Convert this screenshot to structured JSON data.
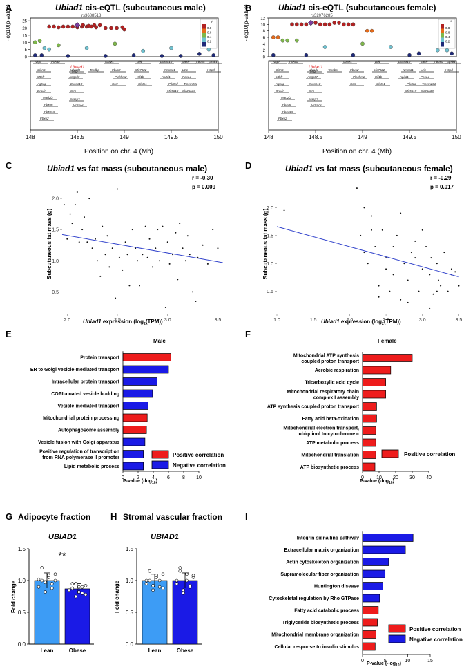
{
  "figure": {
    "panels": {
      "A": {
        "letter": "A",
        "gene": "Ubiad1",
        "title_rest": " cis-eQTL (subcutaneous male)",
        "snp": "rs3688518",
        "ylabel": "-log10(p-value)",
        "yticks": [
          "0",
          "5",
          "10",
          "15",
          "20",
          "25"
        ],
        "xlabel": "Position on chr. 4 (Mb)",
        "xticks": [
          "148",
          "148.5",
          "149",
          "149.5",
          "150"
        ],
        "highlight_gene": "Ubiad1"
      },
      "B": {
        "letter": "B",
        "gene": "Ubiad1",
        "title_rest": " cis-eQTL (subcutaneous female)",
        "snp": "rs32076285",
        "ylabel": "-log10(p-value)",
        "yticks": [
          "0",
          "2",
          "4",
          "6",
          "8",
          "10",
          "12"
        ],
        "xlabel": "Position on chr. 4 (Mb)",
        "xticks": [
          "148",
          "148.5",
          "149",
          "149.5",
          "150"
        ],
        "highlight_gene": "Ubiad1"
      },
      "C": {
        "letter": "C",
        "gene": "Ubiad1",
        "title_rest": " vs fat mass (subcutaneous male)",
        "r": "r = -0.30",
        "p": "p = 0.009",
        "ylabel": "Subcutaneous fat mass (g)",
        "xlabel_gene": "Ubiad1",
        "xlabel_rest": " expression (log",
        "xlabel_sub": "2",
        "xlabel_end": "(TPM))"
      },
      "D": {
        "letter": "D",
        "gene": "Ubiad1",
        "title_rest": " vs fat mass (subcutaneous female)",
        "r": "r = -0.29",
        "p": "p = 0.017",
        "ylabel": "Subcutaneous fat mass (g)",
        "xlabel_gene": "Ubiad1",
        "xlabel_rest": " expression (log",
        "xlabel_sub": "2",
        "xlabel_end": "(TPM))"
      },
      "E": {
        "letter": "E",
        "title": "Male",
        "legend_pos": "Positive correlation",
        "legend_neg": "Negative correlation",
        "xlabel": "P-value (-log",
        "xlabel_sub": "10",
        "xlabel_end": ")"
      },
      "F": {
        "letter": "F",
        "title": "Female",
        "legend_pos": "Positive correlation",
        "xlabel": "P-value (-log",
        "xlabel_sub": "10",
        "xlabel_end": ")"
      },
      "G": {
        "letter": "G",
        "title": "Adipocyte fraction",
        "gene": "UBIAD1",
        "ylabel": "Fold change",
        "signif": "**"
      },
      "H": {
        "letter": "H",
        "title": "Stromal vascular fraction",
        "gene": "UBIAD1",
        "ylabel": "Fold change"
      },
      "I": {
        "letter": "I",
        "legend_pos": "Positive correlation",
        "legend_neg": "Negative correlation",
        "xlabel": "P-value (-log",
        "xlabel_sub": "10",
        "xlabel_end": ")"
      }
    },
    "r2_legend": {
      "title": "r²",
      "ticks": [
        "0.8",
        "0.6",
        "0.4",
        "0.2"
      ]
    },
    "gene_track_labels": [
      "Nbpf",
      "Pkhd2",
      "Mtor",
      "Casz1",
      "Dffb",
      "Ubiad1",
      "Tardbp",
      "Angptl7",
      "Exosc10",
      "Srm",
      "Masp2",
      "Gm572",
      "Clcn6",
      "Mthfr",
      "Agtrap",
      "Draxin",
      "Mad2l2",
      "Fbxo6",
      "Fbxo44",
      "Fbxo2",
      "Mir7022",
      "Plekhm2",
      "Kif1b",
      "Cort",
      "Apitd1",
      "Ubed4b",
      "Nmnat1",
      "Rbp7",
      "Lzic",
      "Pex14",
      "Pgd",
      "Clstn1",
      "Ctnnbip1",
      "Pik3cd",
      "Tmem201",
      "Mir5615",
      "Slc25a33",
      "Spsb1",
      "H6pd"
    ]
  },
  "chart_data": [
    {
      "panel": "A",
      "type": "scatter",
      "title": "Ubiad1 cis-eQTL (subcutaneous male)",
      "xlabel": "Position on chr. 4 (Mb)",
      "ylabel": "-log10(p-value)",
      "xlim": [
        148,
        150
      ],
      "ylim": [
        0,
        27
      ],
      "x": [
        148.2,
        148.25,
        148.3,
        148.35,
        148.4,
        148.45,
        148.5,
        148.55,
        148.6,
        148.65,
        148.7,
        148.5,
        148.56,
        148.62,
        148.68,
        148.74,
        148.8,
        148.86,
        148.92,
        148.98,
        149.0,
        148.05,
        148.1,
        148.15,
        148.2,
        148.3,
        148.6,
        148.9,
        149.2,
        149.5,
        149.8,
        149.9,
        148.05,
        148.12,
        148.4,
        148.8,
        149.1,
        149.4,
        149.6,
        149.95
      ],
      "y": [
        21,
        21,
        20.5,
        21,
        21,
        21,
        20.5,
        21,
        21,
        21,
        20.5,
        22,
        22,
        21.5,
        22,
        22,
        20,
        20,
        20,
        20.5,
        19,
        10,
        11,
        6,
        5,
        8,
        6,
        9,
        4,
        6,
        2,
        5,
        1,
        1,
        0.5,
        0.5,
        1,
        0.5,
        0.5,
        1
      ]
    },
    {
      "panel": "B",
      "type": "scatter",
      "title": "Ubiad1 cis-eQTL (subcutaneous female)",
      "xlabel": "Position on chr. 4 (Mb)",
      "ylabel": "-log10(p-value)",
      "xlim": [
        148,
        150
      ],
      "ylim": [
        0,
        12
      ],
      "x": [
        148.25,
        148.3,
        148.35,
        148.4,
        148.45,
        148.5,
        148.55,
        148.6,
        148.65,
        148.7,
        148.75,
        148.8,
        148.85,
        148.9,
        149.05,
        149.1,
        148.05,
        148.1,
        148.15,
        148.2,
        148.3,
        148.6,
        149.0,
        149.3,
        149.6,
        149.8,
        149.9,
        148.05,
        148.4,
        148.9,
        149.5,
        149.95
      ],
      "y": [
        10,
        10,
        10,
        10,
        10.5,
        10.5,
        10,
        10,
        10,
        10.5,
        10.5,
        10,
        10,
        10,
        8,
        8,
        6,
        6,
        5,
        5,
        5,
        3,
        4,
        3,
        1,
        2,
        2,
        0.5,
        0.5,
        0.5,
        0.5,
        1
      ]
    },
    {
      "panel": "C",
      "type": "scatter",
      "title": "Ubiad1 vs fat mass (subcutaneous male)",
      "xlabel": "Ubiad1 expression (log2(TPM))",
      "ylabel": "Subcutaneous fat mass (g)",
      "xlim": [
        1.95,
        3.6
      ],
      "ylim": [
        0.15,
        2.3
      ],
      "x": [
        1.97,
        2.0,
        2.03,
        2.05,
        2.08,
        2.1,
        2.12,
        2.15,
        2.17,
        2.2,
        2.22,
        2.25,
        2.28,
        2.3,
        2.33,
        2.35,
        2.38,
        2.4,
        2.42,
        2.45,
        2.48,
        2.5,
        2.52,
        2.55,
        2.58,
        2.6,
        2.62,
        2.65,
        2.68,
        2.7,
        2.72,
        2.75,
        2.78,
        2.8,
        2.82,
        2.85,
        2.88,
        2.9,
        2.92,
        2.95,
        2.98,
        3.0,
        3.02,
        3.05,
        3.08,
        3.1,
        3.12,
        3.15,
        3.18,
        3.2,
        3.22,
        3.25,
        3.28,
        3.3,
        3.35,
        3.4,
        3.45,
        3.5
      ],
      "y": [
        1.9,
        1.35,
        1.75,
        1.6,
        1.9,
        2.1,
        1.3,
        1.5,
        1.7,
        1.3,
        2.0,
        1.2,
        1.35,
        1.0,
        0.75,
        1.55,
        1.1,
        1.4,
        0.9,
        1.2,
        0.4,
        2.15,
        1.05,
        0.85,
        1.3,
        1.1,
        0.6,
        1.5,
        1.2,
        1.0,
        0.6,
        1.1,
        1.55,
        1.05,
        1.35,
        0.9,
        1.2,
        1.5,
        1.0,
        1.55,
        0.25,
        1.3,
        0.95,
        1.1,
        1.45,
        0.7,
        1.6,
        1.2,
        1.0,
        1.4,
        1.1,
        0.5,
        0.35,
        1.05,
        1.25,
        0.95,
        1.5,
        1.2
      ],
      "fit_line": {
        "x": [
          1.95,
          3.55
        ],
        "y": [
          1.42,
          0.97
        ]
      },
      "r": -0.3,
      "p": 0.009
    },
    {
      "panel": "D",
      "type": "scatter",
      "title": "Ubiad1 vs fat mass (subcutaneous female)",
      "xlabel": "Ubiad1 expression (log2(TPM))",
      "ylabel": "Subcutaneous fat mass (g)",
      "xlim": [
        1.0,
        3.6
      ],
      "ylim": [
        0.1,
        2.5
      ],
      "x": [
        1.1,
        2.1,
        2.15,
        2.2,
        2.25,
        2.3,
        2.35,
        2.4,
        2.45,
        2.5,
        2.55,
        2.6,
        2.65,
        2.7,
        2.75,
        2.8,
        2.85,
        2.9,
        2.95,
        3.0,
        3.05,
        3.1,
        3.12,
        3.15,
        3.2,
        3.22,
        3.25,
        3.3,
        3.35,
        3.4,
        3.45,
        3.5,
        2.2,
        2.4,
        2.6,
        2.8,
        3.0,
        3.2,
        3.4,
        2.3,
        2.5,
        2.7,
        2.9,
        3.1
      ],
      "y": [
        1.95,
        2.35,
        1.5,
        1.2,
        1.0,
        1.85,
        1.3,
        0.6,
        1.6,
        1.1,
        0.5,
        0.8,
        1.5,
        1.9,
        1.0,
        0.7,
        1.2,
        1.4,
        0.5,
        0.9,
        1.3,
        0.8,
        1.1,
        0.45,
        1.0,
        0.7,
        0.6,
        1.2,
        0.5,
        0.9,
        0.85,
        0.6,
        2.0,
        0.4,
        1.3,
        0.3,
        1.6,
        0.5,
        0.8,
        1.6,
        0.9,
        0.35,
        1.1,
        0.2
      ],
      "fit_line": {
        "x": [
          1.0,
          3.5
        ],
        "y": [
          1.66,
          0.76
        ]
      },
      "r": -0.29,
      "p": 0.017
    },
    {
      "panel": "E",
      "type": "bar",
      "orientation": "horizontal",
      "title": "Male",
      "xlabel": "P-value (-log10)",
      "xlim": [
        0,
        10
      ],
      "xticks": [
        0,
        2,
        4,
        6,
        8,
        10
      ],
      "categories": [
        "Protein transport",
        "ER to Golgi vesicle-mediated transport",
        "Intracellular protein transport",
        "COPII-coated vesicle budding",
        "Vesicle-mediated transport",
        "Mitochondrial protein processing",
        "Autophagosome assembly",
        "Vesicle fusion with Golgi apparatus",
        "Positive regulation of transcription from RNA polymerase II promoter",
        "Lipid metabolic process"
      ],
      "values": [
        6.3,
        6.0,
        4.5,
        3.9,
        3.3,
        3.2,
        3.1,
        2.9,
        2.7,
        2.7
      ],
      "correlation": [
        "positive",
        "negative",
        "negative",
        "negative",
        "negative",
        "positive",
        "positive",
        "negative",
        "negative",
        "negative"
      ],
      "colors": {
        "positive": "#ee1c1c",
        "negative": "#1a1ae6"
      }
    },
    {
      "panel": "F",
      "type": "bar",
      "orientation": "horizontal",
      "title": "Female",
      "xlabel": "P-value (-log10)",
      "xlim": [
        0,
        40
      ],
      "xticks": [
        0,
        10,
        20,
        30,
        40
      ],
      "categories": [
        "Mitochondrial ATP synthesis coupled proton transport",
        "Aerobic respiration",
        "Tricarboxylic acid cycle",
        "Mitochondrial respiratory chain complex I assembly",
        "ATP synthesis coupled proton transport",
        "Fatty acid beta-oxidation",
        "Mitochondrial electron transport, ubiquinol to cytochrome c",
        "ATP metabolic process",
        "Mitochondrial translation",
        "ATP biosynthetic process"
      ],
      "values": [
        30,
        17,
        14,
        14,
        8.5,
        8.5,
        8,
        8,
        8,
        7.5
      ],
      "correlation": [
        "positive",
        "positive",
        "positive",
        "positive",
        "positive",
        "positive",
        "positive",
        "positive",
        "positive",
        "positive"
      ],
      "colors": {
        "positive": "#ee1c1c"
      }
    },
    {
      "panel": "G",
      "type": "bar",
      "title": "UBIAD1",
      "ylabel": "Fold change",
      "ylim": [
        0,
        1.5
      ],
      "yticks": [
        0,
        0.5,
        1.0,
        1.5
      ],
      "categories": [
        "Lean",
        "Obese"
      ],
      "values": [
        1.0,
        0.87
      ],
      "errors": [
        0.12,
        0.08
      ],
      "points": [
        [
          1.02,
          1.2,
          0.82,
          1.05,
          0.95,
          1.1,
          0.9,
          1.0,
          0.97,
          1.08,
          0.88,
          1.0
        ],
        [
          0.85,
          0.95,
          0.75,
          0.9,
          0.8,
          0.92,
          0.85,
          0.88,
          0.95,
          0.82,
          0.9,
          0.78
        ]
      ],
      "colors": [
        "#3d9cf5",
        "#1a1ae6"
      ],
      "significance": "**"
    },
    {
      "panel": "H",
      "type": "bar",
      "title": "UBIAD1",
      "ylabel": "Fold change",
      "ylim": [
        0,
        1.5
      ],
      "yticks": [
        0,
        0.5,
        1.0,
        1.5
      ],
      "categories": [
        "Lean",
        "Obese"
      ],
      "values": [
        1.0,
        1.0
      ],
      "errors": [
        0.1,
        0.12
      ],
      "points": [
        [
          1.0,
          1.15,
          0.85,
          1.05,
          0.9,
          1.1,
          0.95,
          1.0,
          0.92,
          1.08,
          1.0,
          0.88
        ],
        [
          1.0,
          1.2,
          0.8,
          1.1,
          0.9,
          1.05,
          0.95,
          1.15,
          0.85,
          1.0,
          0.92,
          1.08
        ]
      ],
      "colors": [
        "#3d9cf5",
        "#1a1ae6"
      ]
    },
    {
      "panel": "I",
      "type": "bar",
      "orientation": "horizontal",
      "xlabel": "P-value (-log10)",
      "xlim": [
        0,
        15
      ],
      "xticks": [
        0,
        5,
        10,
        15
      ],
      "categories": [
        "Integrin signalling pathway",
        "Extracellular matrix organization",
        "Actin cytoskeleton organization",
        "Supramolecular fiber organization",
        "Huntington disease",
        "Cytoskeletal regulation by Rho GTPase",
        "Fatty acid catabolic process",
        "Triglyceride biosynthetic process",
        "Mitochondrial membrane organization",
        "Cellular response to insulin stimulus"
      ],
      "values": [
        11.2,
        9.5,
        5.8,
        5.0,
        4.5,
        3.8,
        3.5,
        3.3,
        3.0,
        2.8
      ],
      "correlation": [
        "negative",
        "negative",
        "negative",
        "negative",
        "negative",
        "negative",
        "positive",
        "positive",
        "positive",
        "positive"
      ],
      "colors": {
        "positive": "#ee1c1c",
        "negative": "#1a1ae6"
      }
    }
  ]
}
